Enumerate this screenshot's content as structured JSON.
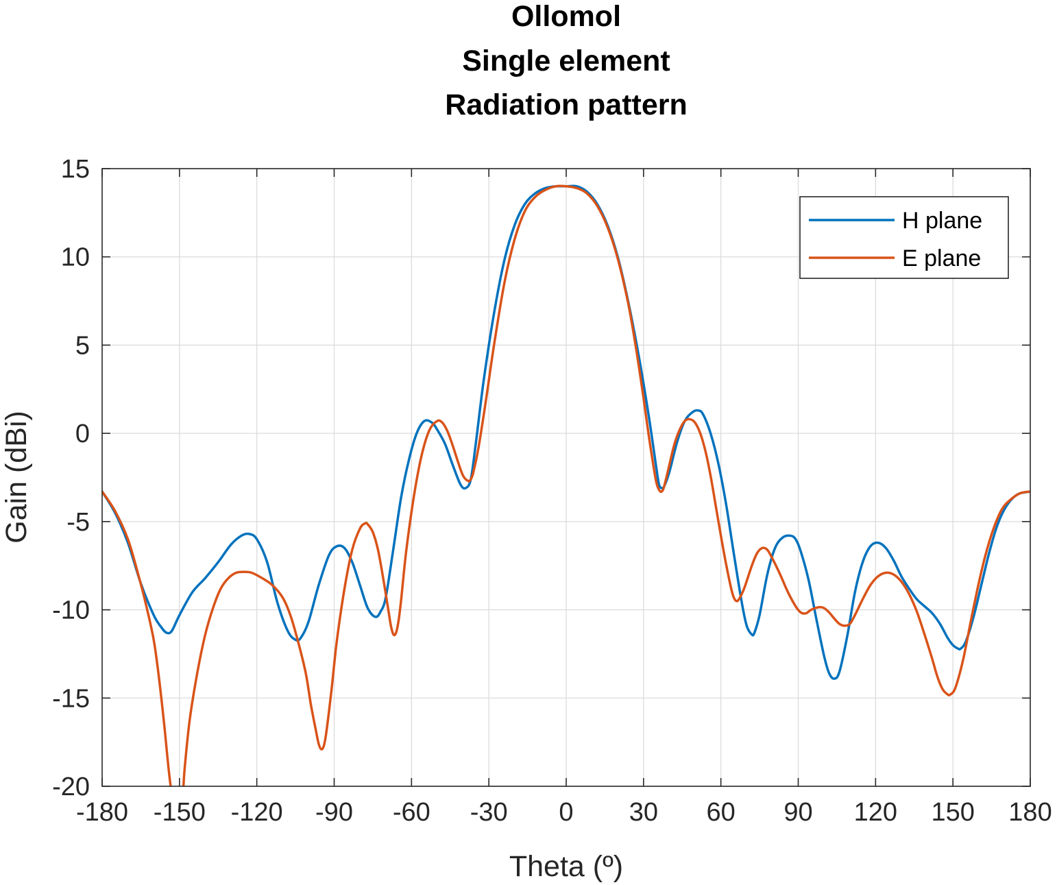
{
  "chart_data": {
    "type": "line",
    "title": [
      "Ollomol",
      "Single element",
      "Radiation pattern"
    ],
    "xlabel": "Theta (º)",
    "ylabel": "Gain (dBi)",
    "xlim": [
      -180,
      180
    ],
    "ylim": [
      -20,
      15
    ],
    "xticks": [
      -180,
      -150,
      -120,
      -90,
      -60,
      -30,
      0,
      30,
      60,
      90,
      120,
      150,
      180
    ],
    "yticks": [
      -20,
      -15,
      -10,
      -5,
      0,
      5,
      10,
      15
    ],
    "xtick_labels": [
      "-180",
      "-150",
      "-120",
      "-90",
      "-60",
      "-30",
      "0",
      "30",
      "60",
      "90",
      "120",
      "150",
      "180"
    ],
    "ytick_labels": [
      "-20",
      "-15",
      "-10",
      "-5",
      "0",
      "5",
      "10",
      "15"
    ],
    "grid": true,
    "legend_position": "top-right",
    "series": [
      {
        "name": "H plane",
        "color": "#0072BD",
        "x": [
          -180,
          -175,
          -170,
          -165,
          -160,
          -157,
          -155,
          -153,
          -150,
          -145,
          -140,
          -135,
          -130,
          -126,
          -123,
          -120,
          -116,
          -112,
          -108,
          -105,
          -103,
          -100,
          -96,
          -92,
          -89,
          -86,
          -83,
          -80,
          -77,
          -74,
          -72,
          -70,
          -67,
          -64,
          -61,
          -58,
          -55,
          -52,
          -50,
          -47,
          -44,
          -41,
          -39,
          -37,
          -35,
          -32,
          -28,
          -24,
          -20,
          -16,
          -12,
          -8,
          -4,
          0,
          4,
          8,
          12,
          16,
          20,
          24,
          28,
          32,
          35,
          36,
          37,
          38,
          40,
          43,
          46,
          49,
          51,
          53,
          56,
          59,
          62,
          65,
          68,
          70,
          72,
          73,
          75,
          78,
          81,
          84,
          87,
          89,
          91,
          94,
          97,
          100,
          102,
          104,
          106,
          109,
          112,
          115,
          118,
          121,
          124,
          127,
          130,
          133,
          136,
          139,
          142,
          145,
          148,
          150,
          152,
          153,
          155,
          158,
          161,
          164,
          167,
          170,
          173,
          176,
          180
        ],
        "y": [
          -3.3,
          -4.5,
          -6.2,
          -8.5,
          -10.3,
          -11.0,
          -11.3,
          -11.2,
          -10.3,
          -9.0,
          -8.2,
          -7.3,
          -6.3,
          -5.8,
          -5.7,
          -6.0,
          -7.3,
          -9.6,
          -11.2,
          -11.7,
          -11.6,
          -10.7,
          -8.6,
          -6.9,
          -6.4,
          -6.5,
          -7.3,
          -8.6,
          -9.9,
          -10.4,
          -10.1,
          -9.3,
          -6.5,
          -3.6,
          -1.5,
          0.0,
          0.7,
          0.6,
          0.2,
          -0.6,
          -1.8,
          -2.9,
          -3.1,
          -2.6,
          -0.5,
          3.0,
          6.8,
          9.8,
          11.8,
          13.0,
          13.6,
          13.9,
          14.0,
          14.0,
          14.0,
          13.7,
          13.0,
          11.8,
          10.0,
          7.5,
          4.5,
          1.0,
          -2.0,
          -2.9,
          -3.1,
          -3.0,
          -2.2,
          -0.5,
          0.7,
          1.2,
          1.3,
          1.1,
          0.0,
          -1.7,
          -4.0,
          -6.8,
          -9.5,
          -10.9,
          -11.4,
          -11.3,
          -10.3,
          -8.0,
          -6.5,
          -5.9,
          -5.8,
          -6.0,
          -6.7,
          -8.3,
          -10.5,
          -12.6,
          -13.6,
          -13.9,
          -13.5,
          -11.5,
          -9.0,
          -7.3,
          -6.4,
          -6.2,
          -6.5,
          -7.2,
          -8.1,
          -8.8,
          -9.4,
          -9.8,
          -10.2,
          -10.8,
          -11.6,
          -12.0,
          -12.2,
          -12.2,
          -11.8,
          -10.4,
          -8.6,
          -6.8,
          -5.3,
          -4.3,
          -3.7,
          -3.4,
          -3.3
        ]
      },
      {
        "name": "E plane",
        "color": "#D95319",
        "x": [
          -180,
          -175,
          -170,
          -166,
          -163,
          -160,
          -158,
          -156,
          -154,
          -152,
          -151,
          -149,
          -148,
          -146,
          -143,
          -140,
          -137,
          -134,
          -131,
          -128,
          -125,
          -122,
          -118,
          -114,
          -110,
          -107,
          -104,
          -101,
          -99,
          -97,
          -96,
          -95,
          -94,
          -93,
          -91,
          -89,
          -86,
          -83,
          -80,
          -78,
          -77,
          -75,
          -73,
          -71,
          -69,
          -68,
          -67,
          -66,
          -65,
          -64,
          -62,
          -59,
          -56,
          -53,
          -50,
          -48,
          -46,
          -44,
          -42,
          -40,
          -38,
          -37,
          -36,
          -34,
          -31,
          -28,
          -24,
          -20,
          -16,
          -12,
          -8,
          -4,
          0,
          4,
          8,
          12,
          16,
          20,
          24,
          27,
          30,
          32,
          34,
          35,
          36,
          37,
          38,
          40,
          42,
          44,
          46,
          48,
          50,
          52,
          54,
          56,
          58,
          60,
          62,
          64,
          65,
          66,
          67,
          69,
          72,
          74,
          76,
          78,
          80,
          83,
          86,
          89,
          91,
          93,
          95,
          98,
          100,
          102,
          104,
          106,
          108,
          110,
          112,
          115,
          118,
          121,
          124,
          127,
          130,
          133,
          136,
          139,
          142,
          144,
          146,
          148,
          149,
          151,
          154,
          157,
          160,
          163,
          166,
          169,
          172,
          176,
          180
        ],
        "y": [
          -3.3,
          -4.4,
          -6.0,
          -8.0,
          -9.7,
          -11.7,
          -13.8,
          -16.4,
          -19.3,
          -21.5,
          -22.0,
          -21.0,
          -19.0,
          -16.2,
          -13.5,
          -11.4,
          -9.9,
          -8.8,
          -8.2,
          -7.9,
          -7.85,
          -7.9,
          -8.2,
          -8.6,
          -9.3,
          -10.3,
          -11.8,
          -13.6,
          -15.4,
          -16.9,
          -17.6,
          -17.9,
          -17.7,
          -16.9,
          -14.5,
          -11.8,
          -8.8,
          -6.6,
          -5.4,
          -5.1,
          -5.15,
          -5.6,
          -6.6,
          -8.2,
          -10.0,
          -10.9,
          -11.4,
          -11.3,
          -10.6,
          -9.4,
          -6.6,
          -3.5,
          -1.2,
          0.2,
          0.7,
          0.6,
          0.1,
          -0.7,
          -1.6,
          -2.4,
          -2.7,
          -2.6,
          -2.2,
          -0.8,
          2.0,
          5.0,
          8.5,
          11.0,
          12.6,
          13.4,
          13.8,
          14.0,
          14.0,
          13.9,
          13.6,
          12.9,
          11.7,
          9.9,
          7.4,
          4.9,
          2.0,
          -0.1,
          -2.0,
          -2.8,
          -3.2,
          -3.3,
          -3.0,
          -1.8,
          -0.6,
          0.2,
          0.7,
          0.8,
          0.6,
          0.0,
          -1.0,
          -2.4,
          -4.1,
          -5.8,
          -7.4,
          -8.8,
          -9.3,
          -9.5,
          -9.4,
          -8.8,
          -7.5,
          -6.8,
          -6.5,
          -6.6,
          -7.1,
          -8.0,
          -9.0,
          -9.8,
          -10.15,
          -10.2,
          -10.0,
          -9.85,
          -9.9,
          -10.15,
          -10.5,
          -10.8,
          -10.9,
          -10.8,
          -10.3,
          -9.4,
          -8.6,
          -8.1,
          -7.9,
          -8.0,
          -8.4,
          -9.1,
          -10.1,
          -11.4,
          -12.8,
          -13.8,
          -14.5,
          -14.8,
          -14.8,
          -14.4,
          -12.8,
          -10.6,
          -8.5,
          -6.7,
          -5.3,
          -4.3,
          -3.8,
          -3.4,
          -3.3
        ]
      }
    ]
  }
}
